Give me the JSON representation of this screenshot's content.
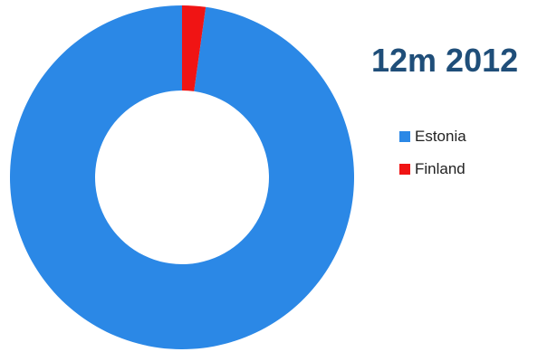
{
  "chart_data": {
    "type": "pie",
    "style": "donut",
    "title": "12m 2012",
    "legend_position": "right",
    "categories": [
      "Estonia",
      "Finland"
    ],
    "values": [
      97.8,
      2.2
    ],
    "colors": [
      "#2B88E6",
      "#F01414"
    ]
  },
  "colors": {
    "title": "#1F4E79",
    "background": "#ffffff"
  }
}
